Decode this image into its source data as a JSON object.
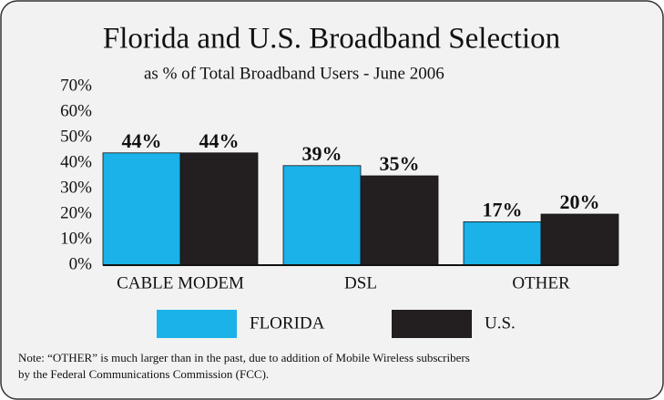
{
  "chart_data": {
    "type": "bar",
    "title": "Florida and U.S. Broadband Selection",
    "subtitle": "as % of Total Broadband Users - June 2006",
    "categories": [
      "CABLE MODEM",
      "DSL",
      "OTHER"
    ],
    "series": [
      {
        "name": "FLORIDA",
        "color": "#1ab2e8",
        "values": [
          44,
          39,
          17
        ],
        "value_labels": [
          "44%",
          "39%",
          "17%"
        ]
      },
      {
        "name": "U.S.",
        "color": "#231f20",
        "values": [
          44,
          35,
          20
        ],
        "value_labels": [
          "44%",
          "35%",
          "20%"
        ]
      }
    ],
    "ylim": [
      0,
      70
    ],
    "yticks": [
      {
        "value": 0,
        "label": "0%"
      },
      {
        "value": 10,
        "label": "10%"
      },
      {
        "value": 20,
        "label": "20%"
      },
      {
        "value": 30,
        "label": "30%"
      },
      {
        "value": 40,
        "label": "40%"
      },
      {
        "value": 50,
        "label": "50%"
      },
      {
        "value": 60,
        "label": "60%"
      },
      {
        "value": 70,
        "label": "70%"
      }
    ],
    "grid": false,
    "note": [
      "Note:  “OTHER” is much larger than in the past, due to addition of Mobile Wireless subscribers",
      "by the Federal Communications Commission (FCC)."
    ]
  }
}
